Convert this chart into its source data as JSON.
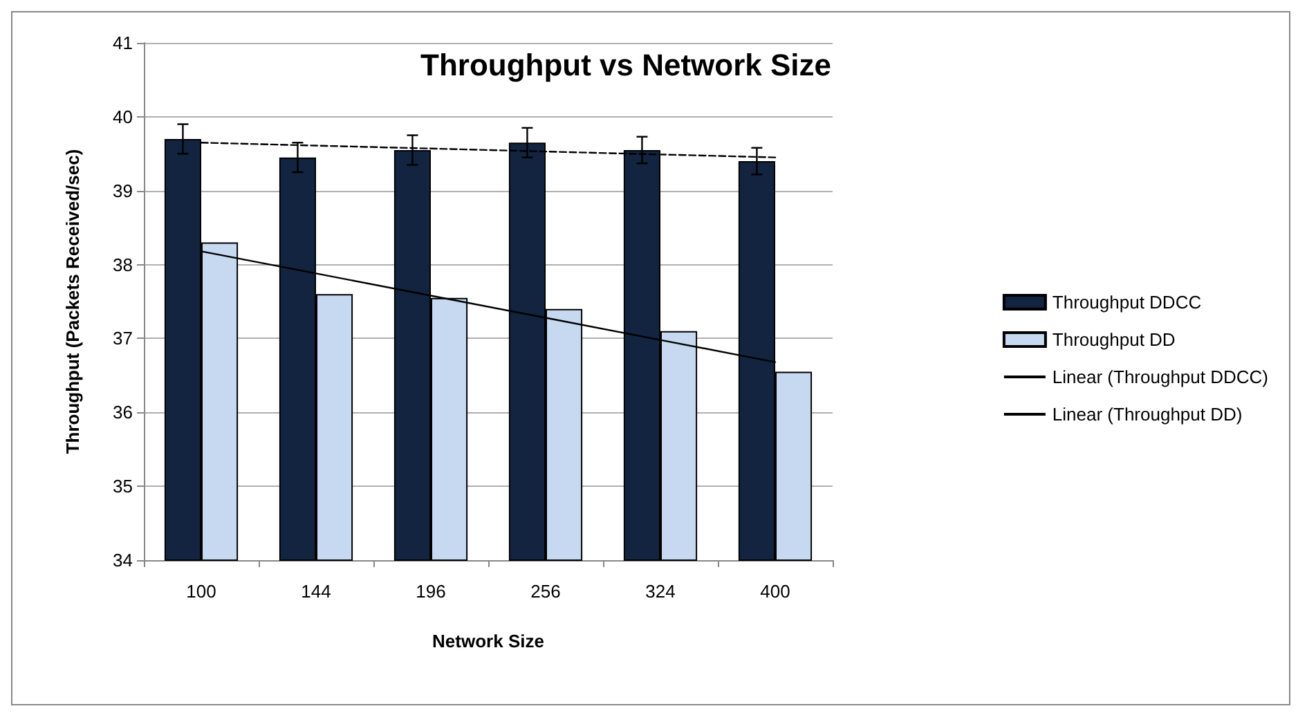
{
  "chart_data": {
    "type": "bar",
    "title": "Throughput vs Network Size",
    "xlabel": "Network Size",
    "ylabel": "Throughput (Packets Received/sec)",
    "categories": [
      "100",
      "144",
      "196",
      "256",
      "324",
      "400"
    ],
    "series": [
      {
        "name": "Throughput DDCC",
        "color": "#12243f",
        "values": [
          39.7,
          39.45,
          39.55,
          39.65,
          39.55,
          39.4
        ],
        "errors": [
          0.2,
          0.2,
          0.2,
          0.2,
          0.18,
          0.18
        ]
      },
      {
        "name": "Throughput DD",
        "color": "#c6d9f1",
        "values": [
          38.3,
          37.6,
          37.55,
          37.4,
          37.1,
          36.55
        ]
      },
      {
        "name": "Linear (Throughput DDCC)",
        "type": "line",
        "color": "#000000",
        "line_style": "dashed",
        "x": [
          "100",
          "144",
          "196",
          "256",
          "324",
          "400"
        ],
        "values": [
          39.65,
          39.61,
          39.57,
          39.53,
          39.49,
          39.45
        ]
      },
      {
        "name": "Linear (Throughput DD)",
        "type": "line",
        "color": "#000000",
        "line_style": "solid",
        "x": [
          "100",
          "144",
          "196",
          "256",
          "324",
          "400"
        ],
        "values": [
          38.18,
          37.88,
          37.58,
          37.28,
          36.98,
          36.68
        ]
      }
    ],
    "ylim": [
      34,
      41
    ],
    "yticks": [
      34,
      35,
      36,
      37,
      38,
      39,
      40,
      41
    ],
    "grid": "y",
    "legend": "right",
    "marker": "none"
  }
}
